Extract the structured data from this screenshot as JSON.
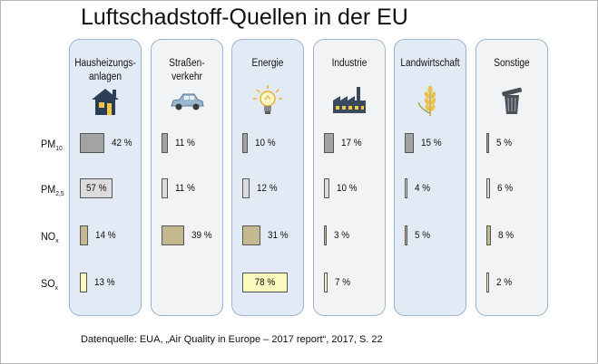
{
  "title": "Luftschadstoff-Quellen in der EU",
  "source": "Datenquelle: EUA, „Air Quality in Europe – 2017 report“, 2017, S. 22",
  "chart_data": {
    "type": "table",
    "title": "Luftschadstoff-Quellen in der EU",
    "categories": [
      "Hausheizungs-anlagen",
      "Straßen-verkehr",
      "Energie",
      "Industrie",
      "Landwirtschaft",
      "Sonstige"
    ],
    "category_labels": [
      [
        "Hausheizungs-",
        "anlagen"
      ],
      [
        "Straßen-",
        "verkehr"
      ],
      [
        "Energie"
      ],
      [
        "Industrie"
      ],
      [
        "Landwirtschaft"
      ],
      [
        "Sonstige"
      ]
    ],
    "category_icons": [
      "house-icon",
      "car-icon",
      "light-bulb-icon",
      "factory-icon",
      "wheat-icon",
      "trash-can-icon"
    ],
    "series": [
      {
        "name": "PM10",
        "label_main": "PM",
        "label_sub": "10",
        "color": "#a3a3a3",
        "values": [
          42,
          11,
          10,
          17,
          15,
          5
        ],
        "labels": [
          "42 %",
          "11 %",
          "10 %",
          "17 %",
          "15 %",
          "5 %"
        ]
      },
      {
        "name": "PM2,5",
        "label_main": "PM",
        "label_sub": "2,5",
        "color": "#dcdcdc",
        "values": [
          57,
          11,
          12,
          10,
          4,
          6
        ],
        "labels": [
          "57 %",
          "11 %",
          "12 %",
          "10 %",
          "4 %",
          "6 %"
        ]
      },
      {
        "name": "NOx",
        "label_main": "NO",
        "label_sub": "x",
        "color": "#c4b88e",
        "values": [
          14,
          39,
          31,
          3,
          5,
          8
        ],
        "labels": [
          "14 %",
          "39 %",
          "31 %",
          "3 %",
          "5 %",
          "8 %"
        ]
      },
      {
        "name": "SOx",
        "label_main": "SO",
        "label_sub": "x",
        "color": "#fafabf",
        "values": [
          13,
          null,
          78,
          7,
          null,
          2
        ],
        "labels": [
          "13 %",
          "",
          "78 %",
          "7 %",
          "",
          "2 %"
        ]
      }
    ],
    "unit": "%",
    "column_colors": [
      "#e2eaf5",
      "#f2f3f5",
      "#e2eaf5",
      "#f2f3f5",
      "#e2eaf5",
      "#f2f3f5"
    ]
  }
}
